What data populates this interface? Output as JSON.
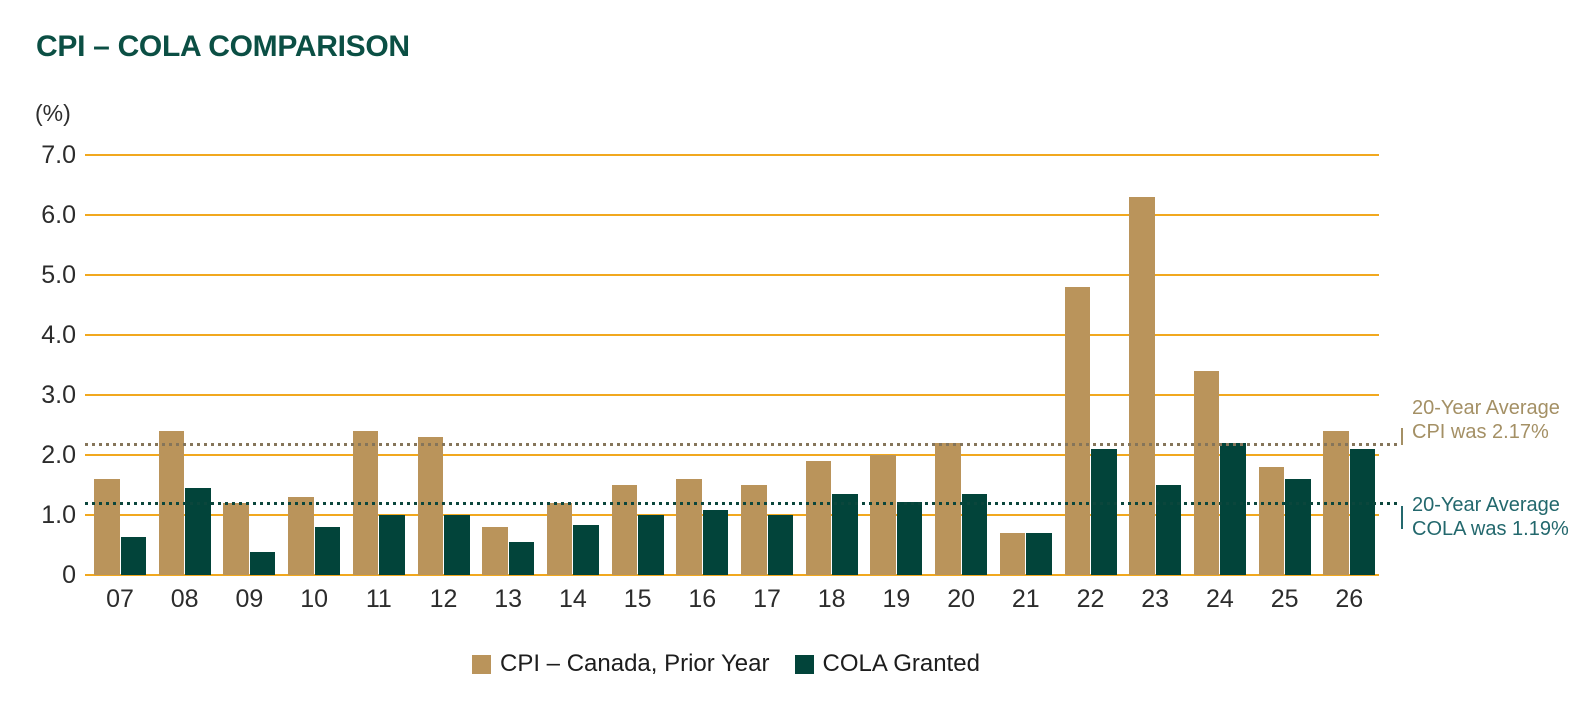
{
  "title": "CPI – COLA COMPARISON",
  "y_axis_unit_label": "(%)",
  "colors": {
    "background": "#ffffff",
    "title_text": "#0b4f44",
    "gridline": "#f1a81f",
    "axis_text": "#2c2c2c",
    "cpi_bar": "#ba945b",
    "cola_bar": "#02443a",
    "cpi_avg_line": "#85755a",
    "cpi_avg_text": "#a49065",
    "cola_avg_line": "#0b463c",
    "cola_avg_text": "#23686d",
    "legend_text": "#1d1d1d"
  },
  "chart_data": {
    "type": "bar",
    "title": "CPI – COLA COMPARISON",
    "ylabel": "(%)",
    "xlabel": "",
    "ylim": [
      0,
      7
    ],
    "yticks": [
      {
        "label": "7.0",
        "value": 7
      },
      {
        "label": "6.0",
        "value": 6
      },
      {
        "label": "5.0",
        "value": 5
      },
      {
        "label": "4.0",
        "value": 4
      },
      {
        "label": "3.0",
        "value": 3
      },
      {
        "label": "2.0",
        "value": 2
      },
      {
        "label": "1.0",
        "value": 1
      },
      {
        "label": "0",
        "value": 0
      }
    ],
    "grid": "horizontal",
    "legend_position": "bottom",
    "categories": [
      "07",
      "08",
      "09",
      "10",
      "11",
      "12",
      "13",
      "14",
      "15",
      "16",
      "17",
      "18",
      "19",
      "20",
      "21",
      "22",
      "23",
      "24",
      "25",
      "26"
    ],
    "series": [
      {
        "name": "CPI – Canada, Prior Year",
        "color": "#ba945b",
        "values": [
          1.6,
          2.4,
          1.2,
          1.3,
          2.4,
          2.3,
          0.8,
          1.2,
          1.5,
          1.6,
          1.5,
          1.9,
          2.0,
          2.2,
          0.7,
          4.8,
          6.3,
          3.4,
          1.8,
          2.4
        ]
      },
      {
        "name": "COLA Granted",
        "color": "#02443a",
        "values": [
          0.63,
          1.45,
          0.38,
          0.8,
          1.0,
          1.0,
          0.55,
          0.83,
          1.0,
          1.08,
          1.0,
          1.35,
          1.22,
          1.35,
          0.7,
          2.1,
          1.5,
          2.2,
          1.6,
          2.1
        ]
      }
    ],
    "reference_lines": [
      {
        "id": "cpi-average",
        "value": 2.17,
        "label_lines": [
          "20-Year Average",
          "CPI was 2.17%"
        ],
        "line_color": "#85755a",
        "text_color": "#a49065",
        "tick_direction": "up"
      },
      {
        "id": "cola-average",
        "value": 1.19,
        "label_lines": [
          "20-Year Average",
          "COLA was 1.19%"
        ],
        "line_color": "#0b463c",
        "text_color": "#23686d",
        "tick_direction": "down"
      }
    ]
  }
}
